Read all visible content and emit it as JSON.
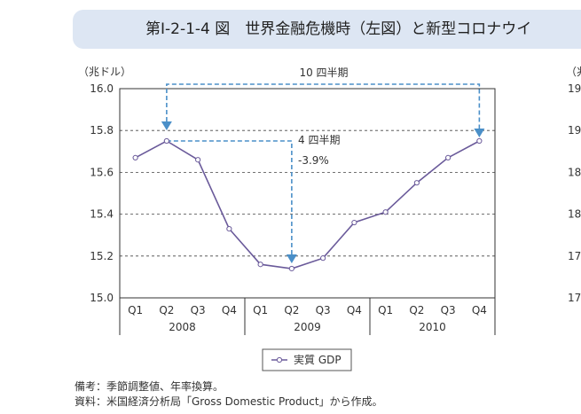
{
  "header": {
    "title": "第Ⅰ-2-1-4 図　世界金融危機時（左図）と新型コロナウイ"
  },
  "chart_data": [
    {
      "type": "line",
      "ylabel": "（兆ドル）",
      "ylim": [
        15.0,
        16.0
      ],
      "yticks": [
        "16.0",
        "15.8",
        "15.6",
        "15.4",
        "15.2",
        "15.0"
      ],
      "grid": "horizontal dashed",
      "categories": [
        "Q1",
        "Q2",
        "Q3",
        "Q4",
        "Q1",
        "Q2",
        "Q3",
        "Q4",
        "Q1",
        "Q2",
        "Q3",
        "Q4"
      ],
      "years": [
        "2008",
        "2009",
        "2010"
      ],
      "series": [
        {
          "name": "実質 GDP",
          "color": "#6a5a9a",
          "values": [
            15.67,
            15.75,
            15.66,
            15.33,
            15.16,
            15.14,
            15.19,
            15.36,
            15.41,
            15.55,
            15.67,
            15.75
          ]
        }
      ],
      "annotations": {
        "span_label": "10 四半期",
        "drop_label": "4 四半期",
        "drop_pct": "-3.9%"
      },
      "legend": {
        "label": "実質 GDP",
        "placement": "bottom-center"
      }
    },
    {
      "type": "line",
      "ylabel": "（兆",
      "yticks": [
        "19",
        "19",
        "18",
        "18",
        "17",
        "17"
      ]
    }
  ],
  "notes": {
    "line1": "備考：季節調整値、年率換算。",
    "line2": "資料：米国経済分析局「Gross Domestic Product」から作成。"
  },
  "colors": {
    "line": "#6a5a9a",
    "arrow": "#4a8fc8",
    "banner": "#dde6f3"
  }
}
